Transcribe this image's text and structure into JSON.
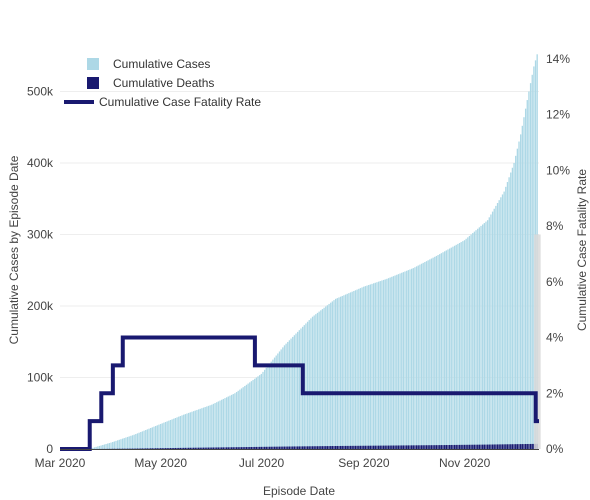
{
  "chart_data": {
    "type": "bar",
    "xlabel": "Episode Date",
    "ylabel_left": "Cumulative Cases by Episode Date",
    "ylabel_right": "Cumulative Case Fatality Rate",
    "x_range": [
      "2020-03-01",
      "2020-12-16"
    ],
    "x_ticks": [
      {
        "date": "2020-03-01",
        "label": "Mar 2020"
      },
      {
        "date": "2020-05-01",
        "label": "May 2020"
      },
      {
        "date": "2020-07-01",
        "label": "Jul 2020"
      },
      {
        "date": "2020-09-01",
        "label": "Sep 2020"
      },
      {
        "date": "2020-11-01",
        "label": "Nov 2020"
      }
    ],
    "y_left_range": [
      0,
      565000
    ],
    "y_left_ticks": [
      {
        "value": 0,
        "label": "0"
      },
      {
        "value": 100000,
        "label": "100k"
      },
      {
        "value": 200000,
        "label": "200k"
      },
      {
        "value": 300000,
        "label": "300k"
      },
      {
        "value": 400000,
        "label": "400k"
      },
      {
        "value": 500000,
        "label": "500k"
      }
    ],
    "y_right_range": [
      0,
      14.5
    ],
    "y_right_ticks": [
      {
        "value": 0,
        "label": "0%"
      },
      {
        "value": 2,
        "label": "2%"
      },
      {
        "value": 4,
        "label": "4%"
      },
      {
        "value": 6,
        "label": "6%"
      },
      {
        "value": 8,
        "label": "8%"
      },
      {
        "value": 10,
        "label": "10%"
      },
      {
        "value": 12,
        "label": "12%"
      },
      {
        "value": 14,
        "label": "14%"
      }
    ],
    "legend": {
      "placement": "top-left",
      "entries": [
        {
          "name": "Cumulative Cases",
          "color": "#add8e6",
          "kind": "square"
        },
        {
          "name": "Cumulative Deaths",
          "color": "#191970",
          "kind": "square"
        },
        {
          "name": "Cumulative Case Fatality Rate",
          "color": "#191970",
          "kind": "line"
        }
      ]
    },
    "series": [
      {
        "name": "Cumulative Cases",
        "type": "bar",
        "axis": "left",
        "color": "#add8e6",
        "points": [
          [
            "2020-03-01",
            0
          ],
          [
            "2020-03-18",
            0
          ],
          [
            "2020-03-19",
            300
          ],
          [
            "2020-04-01",
            9000
          ],
          [
            "2020-04-15",
            20000
          ],
          [
            "2020-05-01",
            35000
          ],
          [
            "2020-05-15",
            48000
          ],
          [
            "2020-06-01",
            62000
          ],
          [
            "2020-06-15",
            78000
          ],
          [
            "2020-07-01",
            105000
          ],
          [
            "2020-07-15",
            145000
          ],
          [
            "2020-08-01",
            185000
          ],
          [
            "2020-08-15",
            210000
          ],
          [
            "2020-09-01",
            227000
          ],
          [
            "2020-09-15",
            238000
          ],
          [
            "2020-10-01",
            253000
          ],
          [
            "2020-10-15",
            270000
          ],
          [
            "2020-11-01",
            292000
          ],
          [
            "2020-11-15",
            320000
          ],
          [
            "2020-11-25",
            360000
          ],
          [
            "2020-12-01",
            400000
          ],
          [
            "2020-12-05",
            440000
          ],
          [
            "2020-12-10",
            500000
          ],
          [
            "2020-12-13",
            535000
          ],
          [
            "2020-12-15",
            552000
          ]
        ]
      },
      {
        "name": "Cumulative Deaths",
        "type": "bar",
        "axis": "left",
        "color": "#191970",
        "points": [
          [
            "2020-03-01",
            0
          ],
          [
            "2020-03-19",
            0
          ],
          [
            "2020-04-15",
            600
          ],
          [
            "2020-05-15",
            1600
          ],
          [
            "2020-06-15",
            2500
          ],
          [
            "2020-07-15",
            3400
          ],
          [
            "2020-08-15",
            4200
          ],
          [
            "2020-09-15",
            4800
          ],
          [
            "2020-10-15",
            5400
          ],
          [
            "2020-11-15",
            6200
          ],
          [
            "2020-12-15",
            7200
          ]
        ]
      },
      {
        "name": "Cumulative Case Fatality Rate",
        "type": "line",
        "shape": "step",
        "axis": "right",
        "color": "#191970",
        "points": [
          [
            "2020-03-01",
            0
          ],
          [
            "2020-03-19",
            0
          ],
          [
            "2020-03-19",
            1
          ],
          [
            "2020-03-26",
            1
          ],
          [
            "2020-03-26",
            2
          ],
          [
            "2020-04-02",
            2
          ],
          [
            "2020-04-02",
            3
          ],
          [
            "2020-04-08",
            3
          ],
          [
            "2020-04-08",
            4
          ],
          [
            "2020-06-27",
            4
          ],
          [
            "2020-06-27",
            3
          ],
          [
            "2020-07-26",
            3
          ],
          [
            "2020-07-26",
            2
          ],
          [
            "2020-12-14",
            2
          ],
          [
            "2020-12-14",
            1
          ],
          [
            "2020-12-16",
            1
          ]
        ]
      }
    ]
  }
}
